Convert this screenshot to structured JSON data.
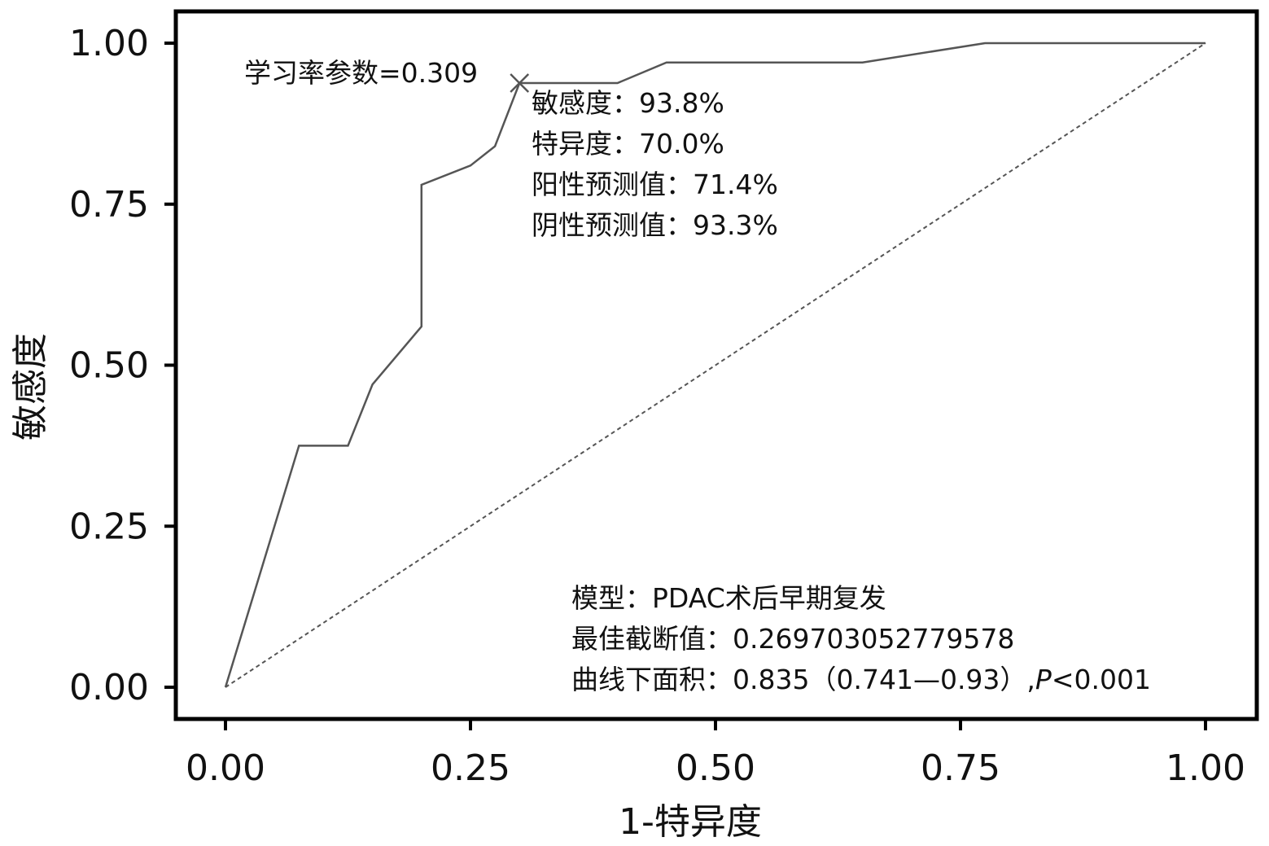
{
  "chart_data": {
    "type": "line",
    "xlabel": "1-特异度",
    "ylabel": "敏感度",
    "xlim": [
      0,
      1
    ],
    "ylim": [
      0,
      1
    ],
    "x_ticks": [
      "0.00",
      "0.25",
      "0.50",
      "0.75",
      "1.00"
    ],
    "y_ticks": [
      "0.00",
      "0.25",
      "0.50",
      "0.75",
      "1.00"
    ],
    "grid": false,
    "series": [
      {
        "style": "solid",
        "color": "#555555",
        "x": [
          0,
          0.075,
          0.125,
          0.15,
          0.2,
          0.2,
          0.25,
          0.275,
          0.3,
          0.3,
          0.4,
          0.45,
          0.65,
          0.775,
          1.0
        ],
        "y": [
          0,
          0.375,
          0.375,
          0.47,
          0.56,
          0.78,
          0.81,
          0.84,
          0.938,
          0.938,
          0.938,
          0.97,
          0.97,
          1.0,
          1.0
        ]
      },
      {
        "style": "dashed",
        "color": "#555555",
        "x": [
          0,
          1
        ],
        "y": [
          0,
          1
        ]
      }
    ],
    "marker": {
      "x": 0.3,
      "y": 0.938,
      "symbol": "x"
    },
    "annotations": {
      "marker_label": "学习率参数=0.309",
      "sensitivity": "敏感度：93.8%",
      "specificity": "特异度：70.0%",
      "ppv": "阳性预测值：71.4%",
      "npv": "阴性预测值：93.3%",
      "model": "模型：PDAC术后早期复发",
      "cutoff": "最佳截断值：0.269703052779578",
      "auc_prefix": "曲线下面积：0.835（0.741—0.93）,",
      "p_symbol": "P",
      "p_value": "<0.001"
    }
  }
}
